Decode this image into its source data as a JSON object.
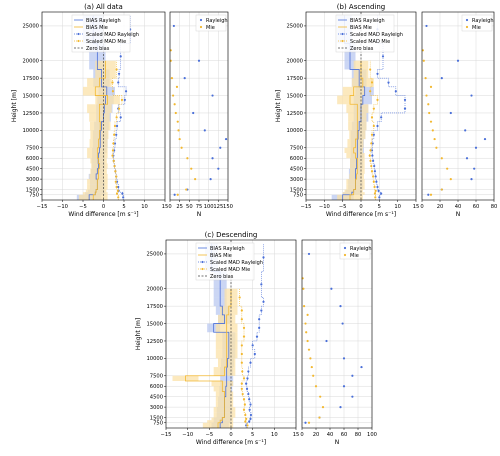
{
  "figure": {
    "height_ticks": [
      750,
      1500,
      3000,
      4500,
      6000,
      7500,
      10000,
      12500,
      15000,
      17500,
      20000,
      25000
    ],
    "y_label": "Height [m]",
    "x_label": "Wind difference [m s⁻¹]",
    "n_label": "N",
    "legend_left": [
      "BIAS Rayleigh",
      "BIAS Mie",
      "Scaled MAD Rayleigh",
      "Scaled MAD Mie",
      "Zero bias"
    ],
    "legend_right": [
      "Rayleigh",
      "Mie"
    ]
  },
  "colors": {
    "rayleigh": "#4a6fd8",
    "mie": "#f2b830",
    "rayleigh_fill": "#b9c8f0",
    "mie_fill": "#fbe2a8"
  },
  "chart_data": [
    {
      "type": "step-profile",
      "title": "(a) All data",
      "xlim": [
        -15,
        15
      ],
      "xticks": [
        -15,
        -10,
        -5,
        0,
        5,
        10,
        15
      ],
      "ylim": [
        0,
        27000
      ],
      "nlim": [
        0,
        150
      ],
      "nticks": [
        0,
        25,
        50,
        75,
        100,
        125,
        150
      ],
      "rayleigh_bins": [
        [
          22500,
          26500,
          -2.5,
          2.5,
          6.5
        ],
        [
          18750,
          22500,
          -1.5,
          2,
          4.2
        ],
        [
          17500,
          18750,
          -0.5,
          2,
          3.8
        ],
        [
          16250,
          17500,
          -0.5,
          2,
          3.6
        ],
        [
          15000,
          16250,
          0.8,
          2,
          5.5
        ],
        [
          13750,
          15000,
          0.5,
          2,
          5.2
        ],
        [
          12500,
          13750,
          0.2,
          2,
          3.6
        ],
        [
          11250,
          12500,
          0,
          1.8,
          4.2
        ],
        [
          10000,
          11250,
          -0.5,
          1.8,
          3.3
        ],
        [
          8750,
          10000,
          -0.8,
          1.8,
          3.1
        ],
        [
          7500,
          8750,
          -0.8,
          1.8,
          2.8
        ],
        [
          6750,
          7500,
          -1,
          1.8,
          2.6
        ],
        [
          6000,
          6750,
          -1.2,
          1.6,
          2.4
        ],
        [
          5250,
          6000,
          -1.3,
          1.6,
          2.5
        ],
        [
          4500,
          5250,
          -1.2,
          1.6,
          2.7
        ],
        [
          3750,
          4500,
          -1.5,
          1.6,
          2.9
        ],
        [
          3000,
          3750,
          -1.8,
          1.8,
          3.1
        ],
        [
          2250,
          3000,
          -1.5,
          1.8,
          3.3
        ],
        [
          1500,
          2250,
          -1.5,
          1.8,
          3.6
        ],
        [
          1125,
          1500,
          -1.8,
          2,
          3.7
        ],
        [
          750,
          1125,
          -2,
          2.5,
          4.6
        ],
        [
          0,
          750,
          -3.5,
          3,
          4.8
        ]
      ],
      "mie_bins": [
        [
          17500,
          20000,
          0.5,
          2.5,
          3.2
        ],
        [
          16250,
          17500,
          -1,
          3,
          2.2
        ],
        [
          15000,
          16250,
          -2,
          3,
          2.3
        ],
        [
          13750,
          15000,
          1,
          3,
          4.5
        ],
        [
          12500,
          13750,
          -1,
          3,
          3.8
        ],
        [
          11250,
          12500,
          -1,
          2.5,
          3.2
        ],
        [
          10000,
          11250,
          -0.8,
          2.5,
          2.8
        ],
        [
          8750,
          10000,
          -1,
          2.2,
          2.6
        ],
        [
          7500,
          8750,
          -1.2,
          2.2,
          2.4
        ],
        [
          6750,
          7500,
          -1.5,
          2.5,
          2.3
        ],
        [
          6000,
          6750,
          -1.5,
          2.5,
          2.2
        ],
        [
          5250,
          6000,
          -1.2,
          2,
          2.5
        ],
        [
          4500,
          5250,
          -1,
          2,
          2.7
        ],
        [
          3750,
          4500,
          -1.2,
          2,
          2.9
        ],
        [
          3000,
          3750,
          -1.2,
          2.2,
          3.1
        ],
        [
          2250,
          3000,
          -1.5,
          2.5,
          3
        ],
        [
          1500,
          2250,
          -1.5,
          2.5,
          3.2
        ],
        [
          1125,
          1500,
          -1.8,
          2.5,
          3.5
        ],
        [
          750,
          1125,
          -2,
          3,
          3.3
        ],
        [
          0,
          750,
          -2.5,
          3.5,
          3.6
        ]
      ],
      "n_rayleigh": [
        [
          25000,
          10
        ],
        [
          20000,
          75
        ],
        [
          17500,
          38
        ],
        [
          15000,
          110
        ],
        [
          12500,
          60
        ],
        [
          10000,
          90
        ],
        [
          8750,
          145
        ],
        [
          7500,
          130
        ],
        [
          6000,
          110
        ],
        [
          4500,
          125
        ],
        [
          3000,
          105
        ],
        [
          1500,
          45
        ],
        [
          750,
          12
        ]
      ],
      "n_mie": [
        [
          21500,
          2
        ],
        [
          20000,
          2
        ],
        [
          17500,
          5
        ],
        [
          16250,
          18
        ],
        [
          15000,
          8
        ],
        [
          13750,
          12
        ],
        [
          12500,
          15
        ],
        [
          11250,
          20
        ],
        [
          10000,
          22
        ],
        [
          8750,
          25
        ],
        [
          7500,
          30
        ],
        [
          6000,
          45
        ],
        [
          4500,
          55
        ],
        [
          3000,
          65
        ],
        [
          1500,
          42
        ],
        [
          750,
          20
        ]
      ]
    },
    {
      "type": "step-profile",
      "title": "(b) Ascending",
      "xlim": [
        -15,
        15
      ],
      "xticks": [
        -15,
        -10,
        -5,
        0,
        5,
        10,
        15
      ],
      "ylim": [
        0,
        27000
      ],
      "nlim": [
        0,
        80
      ],
      "nticks": [
        0,
        20,
        40,
        60,
        80
      ],
      "rayleigh_bins": [
        [
          22500,
          26500,
          -4.5,
          2,
          4.5
        ],
        [
          18750,
          22500,
          -3,
          1.5,
          6
        ],
        [
          17500,
          18750,
          -0.5,
          2,
          4.5
        ],
        [
          16250,
          17500,
          -0.5,
          2,
          7.5
        ],
        [
          15000,
          16250,
          1,
          2.5,
          9.5
        ],
        [
          13750,
          15000,
          0.5,
          2.5,
          12
        ],
        [
          12500,
          13750,
          0,
          2,
          12
        ],
        [
          11250,
          12500,
          0,
          2,
          5.5
        ],
        [
          10000,
          11250,
          -0.5,
          2,
          4.5
        ],
        [
          8750,
          10000,
          -0.8,
          2,
          3.5
        ],
        [
          7500,
          8750,
          -1,
          1.8,
          3.2
        ],
        [
          6750,
          7500,
          -1,
          1.8,
          3
        ],
        [
          6000,
          6750,
          -1,
          1.8,
          3.1
        ],
        [
          5250,
          6000,
          -1.2,
          1.8,
          3.3
        ],
        [
          4500,
          5250,
          -1.2,
          1.8,
          3.6
        ],
        [
          3750,
          4500,
          -1.5,
          1.8,
          3.8
        ],
        [
          3000,
          3750,
          -1.5,
          1.8,
          4
        ],
        [
          2250,
          3000,
          -1.5,
          2,
          4.2
        ],
        [
          1500,
          2250,
          -1.5,
          2,
          4.5
        ],
        [
          1125,
          1500,
          -2,
          2.2,
          4.8
        ],
        [
          750,
          1125,
          -2.5,
          2.5,
          5.5
        ],
        [
          0,
          750,
          -5,
          3,
          5
        ]
      ],
      "mie_bins": [
        [
          17500,
          20000,
          0,
          2,
          2.5
        ],
        [
          16250,
          17500,
          0.5,
          3,
          3
        ],
        [
          15000,
          16250,
          -2,
          3,
          2.5
        ],
        [
          13750,
          15000,
          -3,
          3.5,
          4.5
        ],
        [
          12500,
          13750,
          -1,
          3,
          3.5
        ],
        [
          11250,
          12500,
          -1,
          2.5,
          3
        ],
        [
          10000,
          11250,
          -1,
          2.5,
          3.5
        ],
        [
          8750,
          10000,
          -1,
          2.2,
          3
        ],
        [
          7500,
          8750,
          -1.5,
          2.2,
          2.8
        ],
        [
          6750,
          7500,
          -2,
          2.5,
          2.6
        ],
        [
          6000,
          6750,
          -1.5,
          2.5,
          2.4
        ],
        [
          5250,
          6000,
          -1,
          2,
          2.6
        ],
        [
          4500,
          5250,
          -1,
          2,
          2.8
        ],
        [
          3750,
          4500,
          -1,
          2,
          3
        ],
        [
          3000,
          3750,
          -1.2,
          2,
          3.3
        ],
        [
          2250,
          3000,
          -1.5,
          2.5,
          3.5
        ],
        [
          1500,
          2250,
          -1.5,
          2.5,
          3.7
        ],
        [
          1125,
          1500,
          -2,
          2.5,
          4
        ],
        [
          750,
          1125,
          -2,
          3,
          3.8
        ],
        [
          0,
          750,
          -3,
          3.5,
          3.9
        ]
      ],
      "n_rayleigh": [
        [
          25000,
          5
        ],
        [
          20000,
          40
        ],
        [
          17500,
          22
        ],
        [
          15000,
          55
        ],
        [
          12500,
          32
        ],
        [
          10000,
          48
        ],
        [
          8750,
          70
        ],
        [
          7500,
          60
        ],
        [
          6000,
          50
        ],
        [
          4500,
          58
        ],
        [
          3000,
          55
        ],
        [
          1500,
          22
        ],
        [
          750,
          7
        ]
      ],
      "n_mie": [
        [
          21500,
          1
        ],
        [
          20000,
          2
        ],
        [
          17500,
          4
        ],
        [
          16250,
          10
        ],
        [
          15000,
          5
        ],
        [
          13750,
          7
        ],
        [
          12500,
          8
        ],
        [
          11250,
          10
        ],
        [
          10000,
          12
        ],
        [
          8750,
          14
        ],
        [
          7500,
          16
        ],
        [
          6000,
          22
        ],
        [
          4500,
          28
        ],
        [
          3000,
          32
        ],
        [
          1500,
          22
        ],
        [
          750,
          10
        ]
      ]
    },
    {
      "type": "step-profile",
      "title": "(c) Descending",
      "xlim": [
        -15,
        15
      ],
      "xticks": [
        -15,
        -10,
        -5,
        0,
        5,
        10,
        15
      ],
      "ylim": [
        0,
        27000
      ],
      "nlim": [
        0,
        100
      ],
      "nticks": [
        0,
        20,
        40,
        60,
        80,
        100
      ],
      "rayleigh_bins": [
        [
          22500,
          26500,
          -4.5,
          1.5,
          7.5
        ],
        [
          18750,
          22500,
          -2.5,
          1.5,
          7
        ],
        [
          17500,
          18750,
          -2.5,
          1.5,
          7.5
        ],
        [
          16250,
          17500,
          -2,
          1.5,
          7
        ],
        [
          15000,
          16250,
          -1.5,
          1.5,
          6.5
        ],
        [
          13750,
          15000,
          -4,
          1.5,
          6.5
        ],
        [
          12500,
          13750,
          -0.5,
          1.5,
          6
        ],
        [
          11250,
          12500,
          -0.5,
          1.5,
          5
        ],
        [
          10000,
          11250,
          -0.5,
          1.5,
          5.5
        ],
        [
          8750,
          10000,
          -0.8,
          1.5,
          4.5
        ],
        [
          7500,
          8750,
          -1,
          1.5,
          4
        ],
        [
          6750,
          7500,
          -1,
          1.5,
          3.8
        ],
        [
          6000,
          6750,
          -1,
          1.5,
          3.5
        ],
        [
          5250,
          6000,
          -1.2,
          1.5,
          3.7
        ],
        [
          4500,
          5250,
          -1.2,
          1.5,
          4
        ],
        [
          3750,
          4500,
          -1.5,
          1.5,
          4.2
        ],
        [
          3000,
          3750,
          -1.5,
          1.5,
          4.5
        ],
        [
          2250,
          3000,
          -1.5,
          1.8,
          4.3
        ],
        [
          1500,
          2250,
          -1.5,
          1.8,
          4.6
        ],
        [
          1125,
          1500,
          -2,
          2,
          4.5
        ],
        [
          750,
          1125,
          -2,
          2,
          4.2
        ],
        [
          0,
          750,
          -2.5,
          2,
          3.5
        ]
      ],
      "mie_bins": [
        [
          17500,
          20000,
          0,
          1.5,
          2
        ],
        [
          16250,
          17500,
          -0.5,
          2,
          2.5
        ],
        [
          15000,
          16250,
          -1,
          2,
          2.5
        ],
        [
          13750,
          15000,
          -1,
          2.5,
          3
        ],
        [
          12500,
          13750,
          -1,
          2.5,
          3
        ],
        [
          11250,
          12500,
          -1,
          2.5,
          2.5
        ],
        [
          10000,
          11250,
          -1,
          2.5,
          2.5
        ],
        [
          8750,
          10000,
          -1,
          2,
          2.5
        ],
        [
          7500,
          8750,
          -1.5,
          2.5,
          2.6
        ],
        [
          6750,
          7500,
          -10.5,
          3,
          3
        ],
        [
          6000,
          6750,
          -2,
          2.5,
          2.5
        ],
        [
          5250,
          6000,
          -2,
          2,
          2.5
        ],
        [
          4500,
          5250,
          -1.5,
          2,
          2.7
        ],
        [
          3750,
          4500,
          -1.5,
          2,
          3
        ],
        [
          3000,
          3750,
          -1.5,
          2,
          3.2
        ],
        [
          2250,
          3000,
          -1.5,
          2.5,
          3
        ],
        [
          1500,
          2250,
          -1.5,
          2.5,
          3.3
        ],
        [
          1125,
          1500,
          -2,
          2.5,
          3.5
        ],
        [
          750,
          1125,
          -2.5,
          3,
          3.3
        ],
        [
          0,
          750,
          -3,
          3.5,
          3.8
        ]
      ],
      "n_rayleigh": [
        [
          25000,
          10
        ],
        [
          20000,
          42
        ],
        [
          17500,
          55
        ],
        [
          15000,
          58
        ],
        [
          12500,
          35
        ],
        [
          10000,
          60
        ],
        [
          8750,
          85
        ],
        [
          7500,
          72
        ],
        [
          6000,
          60
        ],
        [
          4500,
          72
        ],
        [
          3000,
          55
        ],
        [
          1500,
          25
        ],
        [
          750,
          5
        ]
      ],
      "n_mie": [
        [
          21500,
          1
        ],
        [
          20000,
          2
        ],
        [
          17500,
          3
        ],
        [
          16250,
          8
        ],
        [
          15000,
          5
        ],
        [
          13750,
          6
        ],
        [
          12500,
          8
        ],
        [
          11250,
          10
        ],
        [
          10000,
          12
        ],
        [
          8750,
          14
        ],
        [
          7500,
          16
        ],
        [
          6000,
          20
        ],
        [
          4500,
          26
        ],
        [
          3000,
          30
        ],
        [
          1500,
          25
        ],
        [
          750,
          10
        ]
      ]
    }
  ]
}
